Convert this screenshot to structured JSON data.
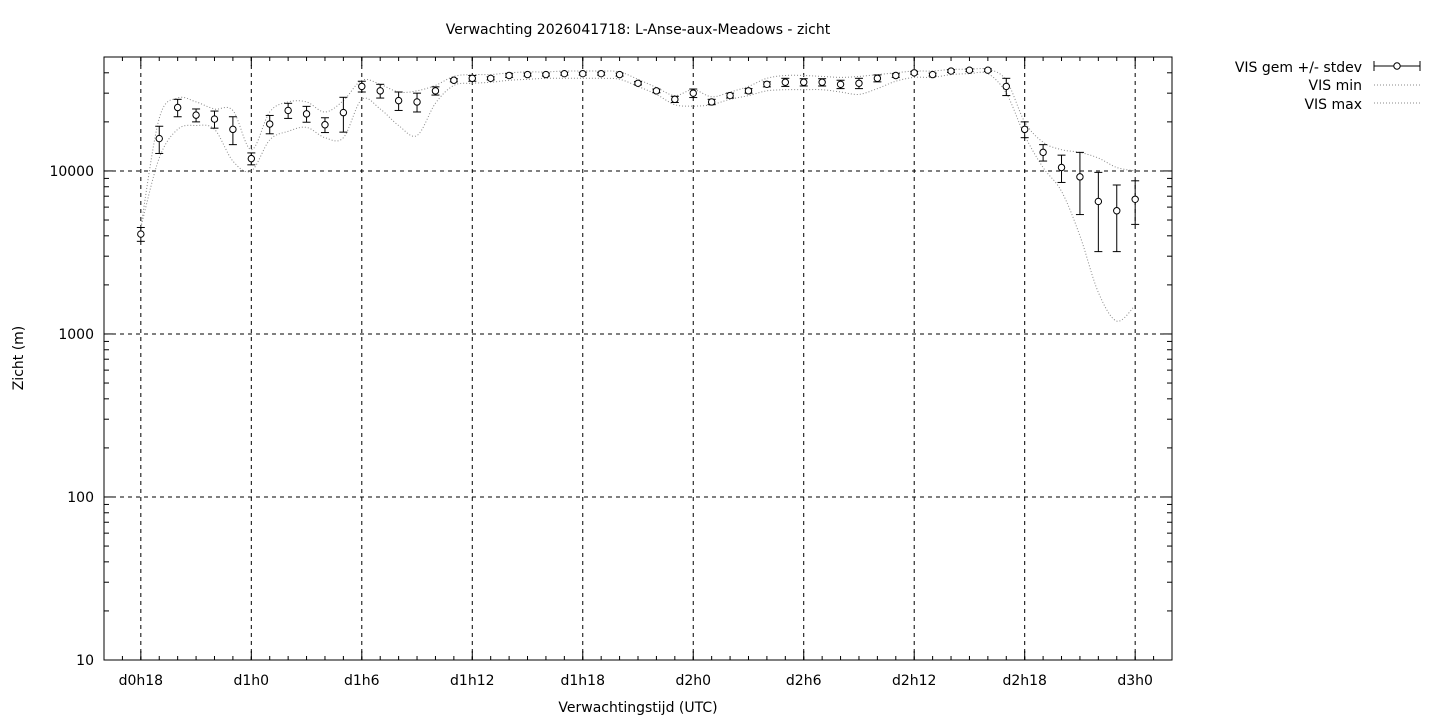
{
  "chart_data": {
    "type": "line",
    "title": "Verwachting 2026041718: L-Anse-aux-Meadows - zicht",
    "xlabel": "Verwachtingstijd (UTC)",
    "ylabel": "Zicht (m)",
    "yscale": "log",
    "ylim": [
      10,
      50000
    ],
    "xlim": [
      "d0h16",
      "d3h2"
    ],
    "grid": true,
    "legend_position": "outside-top-right",
    "xticks": [
      "d0h18",
      "d1h0",
      "d1h6",
      "d1h12",
      "d1h18",
      "d2h0",
      "d2h6",
      "d2h12",
      "d2h18",
      "d3h0"
    ],
    "yticks": [
      "10",
      "100",
      "1000",
      "10000"
    ],
    "x": [
      "d0h18",
      "d0h19",
      "d0h20",
      "d0h21",
      "d0h22",
      "d0h23",
      "d1h0",
      "d1h1",
      "d1h2",
      "d1h3",
      "d1h4",
      "d1h5",
      "d1h6",
      "d1h7",
      "d1h8",
      "d1h9",
      "d1h10",
      "d1h11",
      "d1h12",
      "d1h13",
      "d1h14",
      "d1h15",
      "d1h16",
      "d1h17",
      "d1h18",
      "d1h19",
      "d1h20",
      "d1h21",
      "d1h22",
      "d1h23",
      "d2h0",
      "d2h1",
      "d2h2",
      "d2h3",
      "d2h4",
      "d2h5",
      "d2h6",
      "d2h7",
      "d2h8",
      "d2h9",
      "d2h10",
      "d2h11",
      "d2h12",
      "d2h13",
      "d2h14",
      "d2h15",
      "d2h16",
      "d2h17",
      "d2h18",
      "d2h19",
      "d2h20",
      "d2h21",
      "d2h22",
      "d2h23",
      "d3h0"
    ],
    "series": [
      {
        "name": "VIS gem +/- stdev",
        "style": "points-errorbars",
        "values": [
          4100,
          15800,
          24500,
          22000,
          20800,
          18000,
          11900,
          19400,
          23500,
          22400,
          19200,
          22800,
          33000,
          31000,
          27000,
          26500,
          31000,
          36000,
          37000,
          37000,
          38500,
          39000,
          39000,
          39500,
          39500,
          39500,
          39000,
          34500,
          31000,
          27500,
          30000,
          26500,
          29000,
          31000,
          34000,
          35000,
          35000,
          35000,
          34000,
          34500,
          37000,
          38500,
          40000,
          39000,
          41000,
          41500,
          41500,
          33000,
          18000,
          13000,
          10500,
          9200,
          6500,
          5700,
          6700
        ],
        "stdev": [
          400,
          3000,
          3000,
          2000,
          2500,
          3500,
          1000,
          2500,
          2500,
          2500,
          2000,
          5500,
          2500,
          3000,
          3500,
          3500,
          1800,
          800,
          1500,
          800,
          1000,
          800,
          800,
          800,
          800,
          800,
          800,
          800,
          800,
          1200,
          1800,
          1000,
          1000,
          1000,
          1200,
          2000,
          1800,
          1800,
          2000,
          2500,
          1800,
          1000,
          800,
          800,
          800,
          800,
          800,
          4000,
          2000,
          1500,
          2000,
          3800,
          3300,
          2500,
          2000
        ]
      },
      {
        "name": "VIS min",
        "style": "dotted",
        "values": [
          4500,
          12000,
          18000,
          19000,
          18000,
          11500,
          10000,
          15500,
          17500,
          18500,
          16000,
          16000,
          27500,
          24000,
          19000,
          16500,
          26000,
          33500,
          34500,
          35000,
          36000,
          36500,
          37000,
          37000,
          37000,
          37000,
          36500,
          33000,
          29500,
          25500,
          25000,
          25500,
          27500,
          29000,
          31000,
          31500,
          31500,
          31500,
          30500,
          29500,
          32000,
          35500,
          37500,
          37500,
          39000,
          39500,
          39500,
          30000,
          16500,
          10500,
          7500,
          4000,
          1800,
          1200,
          1500
        ]
      },
      {
        "name": "VIS max",
        "style": "dotted",
        "values": [
          4500,
          21000,
          28000,
          26500,
          24000,
          23500,
          13500,
          23000,
          26500,
          26500,
          23000,
          27000,
          36000,
          34000,
          30500,
          31000,
          33500,
          38000,
          39000,
          39000,
          40000,
          40500,
          40500,
          41000,
          41000,
          41000,
          40500,
          36500,
          32500,
          29000,
          31500,
          28500,
          30500,
          33000,
          37000,
          38500,
          38500,
          38000,
          37500,
          38000,
          39000,
          40000,
          41000,
          41000,
          42000,
          42000,
          42000,
          36000,
          20000,
          15000,
          13500,
          13000,
          12000,
          10500,
          10000
        ]
      }
    ]
  }
}
